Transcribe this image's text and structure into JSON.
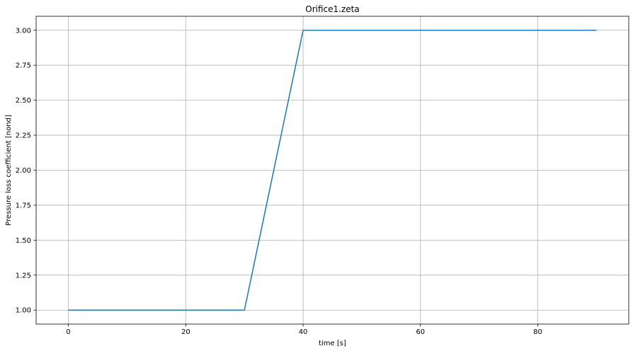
{
  "chart_data": {
    "type": "line",
    "title": "Orifice1.zeta",
    "xlabel": "time [s]",
    "ylabel": "Pressure loss coefficient [nond]",
    "xlim": [
      -5.5,
      95.5
    ],
    "ylim": [
      0.9,
      3.1
    ],
    "x_ticks": [
      0,
      20,
      40,
      60,
      80
    ],
    "x_tick_labels": [
      "0",
      "20",
      "40",
      "60",
      "80"
    ],
    "y_ticks": [
      1.0,
      1.25,
      1.5,
      1.75,
      2.0,
      2.25,
      2.5,
      2.75,
      3.0
    ],
    "y_tick_labels": [
      "1.00",
      "1.25",
      "1.50",
      "1.75",
      "2.00",
      "2.25",
      "2.50",
      "2.75",
      "3.00"
    ],
    "grid": true,
    "series": [
      {
        "color": "#1f77b4",
        "x": [
          0,
          30,
          40,
          90
        ],
        "y": [
          1.0,
          1.0,
          3.0,
          3.0
        ]
      }
    ]
  }
}
